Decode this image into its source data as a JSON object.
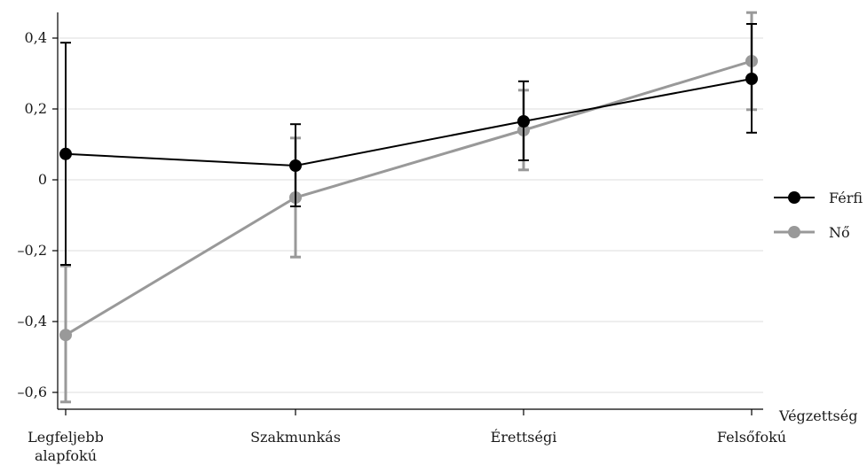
{
  "chart_data": {
    "type": "line",
    "xlabel": "Végzettség",
    "ylabel": "",
    "categories": [
      [
        "Legfeljebb",
        "alapfokú"
      ],
      [
        "Szakmunkás"
      ],
      [
        "Érettségi"
      ],
      [
        "Felsőfokú"
      ]
    ],
    "ylim": [
      -0.66,
      0.46
    ],
    "yticks": [
      -0.6,
      -0.4,
      -0.2,
      0,
      0.2,
      0.4
    ],
    "ytick_labels": [
      "–0,6",
      "–0,4",
      "–0,2",
      "0",
      "0,2",
      "0,4"
    ],
    "grid": true,
    "legend_position": "right",
    "series": [
      {
        "name": "Férfi",
        "color": "#000000",
        "values": [
          0.073,
          0.04,
          0.165,
          0.285
        ],
        "err_low": [
          -0.24,
          -0.075,
          0.055,
          0.133
        ],
        "err_high": [
          0.387,
          0.157,
          0.278,
          0.44
        ]
      },
      {
        "name": "Nő",
        "color": "#999999",
        "values": [
          -0.438,
          -0.05,
          0.14,
          0.335
        ],
        "err_low": [
          -0.627,
          -0.218,
          0.028,
          0.198
        ],
        "err_high": [
          -0.243,
          0.118,
          0.253,
          0.472
        ]
      }
    ]
  }
}
